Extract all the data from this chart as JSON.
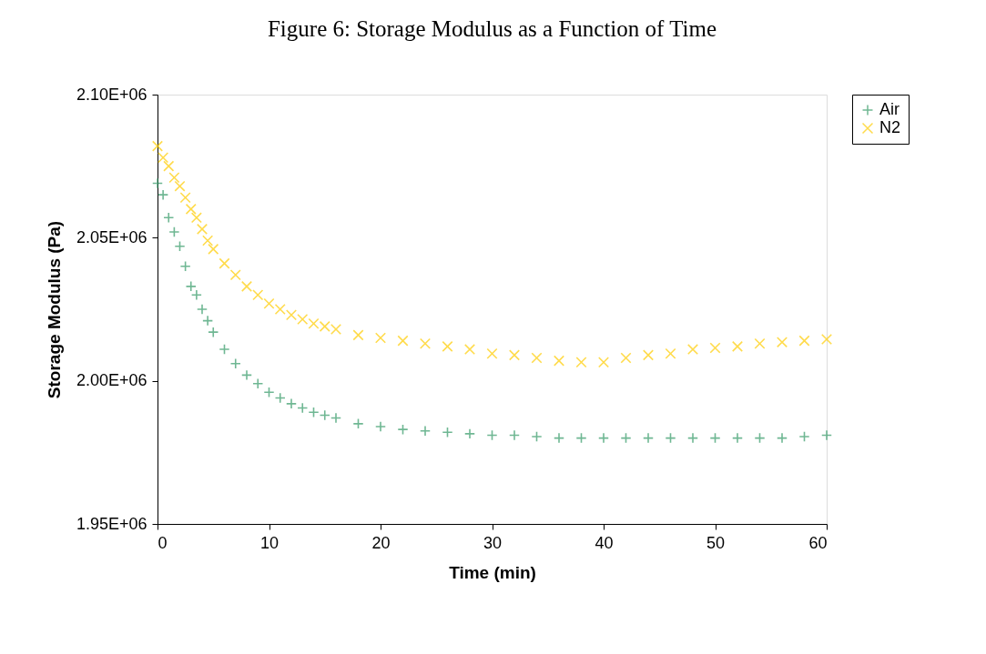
{
  "chart_data": {
    "type": "scatter",
    "title": "Figure 6: Storage Modulus as a Function of Time",
    "xlabel": "Time (min)",
    "ylabel": "Storage Modulus (Pa)",
    "xlim": [
      0,
      60
    ],
    "xticks": [
      0,
      10,
      20,
      30,
      40,
      50,
      60
    ],
    "ylim": [
      1950000,
      2100000
    ],
    "yticks": [
      {
        "value": 1950000,
        "label": "1.95E+06"
      },
      {
        "value": 2000000,
        "label": "2.00E+06"
      },
      {
        "value": 2050000,
        "label": "2.05E+06"
      },
      {
        "value": 2100000,
        "label": "2.10E+06"
      }
    ],
    "grid": false,
    "legend": "right",
    "series": [
      {
        "name": "Air",
        "color": "#339966",
        "marker": "cross",
        "x": [
          0,
          0.5,
          1,
          1.5,
          2,
          2.5,
          3,
          3.5,
          4,
          4.5,
          5,
          6,
          7,
          8,
          9,
          10,
          11,
          12,
          13,
          14,
          15,
          16,
          18,
          20,
          22,
          24,
          26,
          28,
          30,
          32,
          34,
          36,
          38,
          40,
          42,
          44,
          46,
          48,
          50,
          52,
          54,
          56,
          58,
          60
        ],
        "values": [
          2069000,
          2065000,
          2057000,
          2052000,
          2047000,
          2040000,
          2033000,
          2030000,
          2025000,
          2021000,
          2017000,
          2011000,
          2006000,
          2002000,
          1999000,
          1996000,
          1994000,
          1992000,
          1990500,
          1989000,
          1988000,
          1987000,
          1985000,
          1984000,
          1983000,
          1982500,
          1982000,
          1981500,
          1981000,
          1981000,
          1980500,
          1980000,
          1980000,
          1980000,
          1980000,
          1980000,
          1980000,
          1980000,
          1980000,
          1980000,
          1980000,
          1980000,
          1980500,
          1981000
        ]
      },
      {
        "name": "N2",
        "color": "#ffcc00",
        "marker": "x",
        "x": [
          0,
          0.5,
          1,
          1.5,
          2,
          2.5,
          3,
          3.5,
          4,
          4.5,
          5,
          6,
          7,
          8,
          9,
          10,
          11,
          12,
          13,
          14,
          15,
          16,
          18,
          20,
          22,
          24,
          26,
          28,
          30,
          32,
          34,
          36,
          38,
          40,
          42,
          44,
          46,
          48,
          50,
          52,
          54,
          56,
          58,
          60
        ],
        "values": [
          2082000,
          2078000,
          2075000,
          2071000,
          2068000,
          2064000,
          2060000,
          2057000,
          2053000,
          2049000,
          2046000,
          2041000,
          2037000,
          2033000,
          2030000,
          2027000,
          2025000,
          2023000,
          2021500,
          2020000,
          2019000,
          2018000,
          2016000,
          2015000,
          2014000,
          2013000,
          2012000,
          2011000,
          2009500,
          2009000,
          2008000,
          2007000,
          2006500,
          2006500,
          2008000,
          2009000,
          2009500,
          2011000,
          2011500,
          2012000,
          2013000,
          2013500,
          2014000,
          2014500
        ]
      }
    ]
  }
}
